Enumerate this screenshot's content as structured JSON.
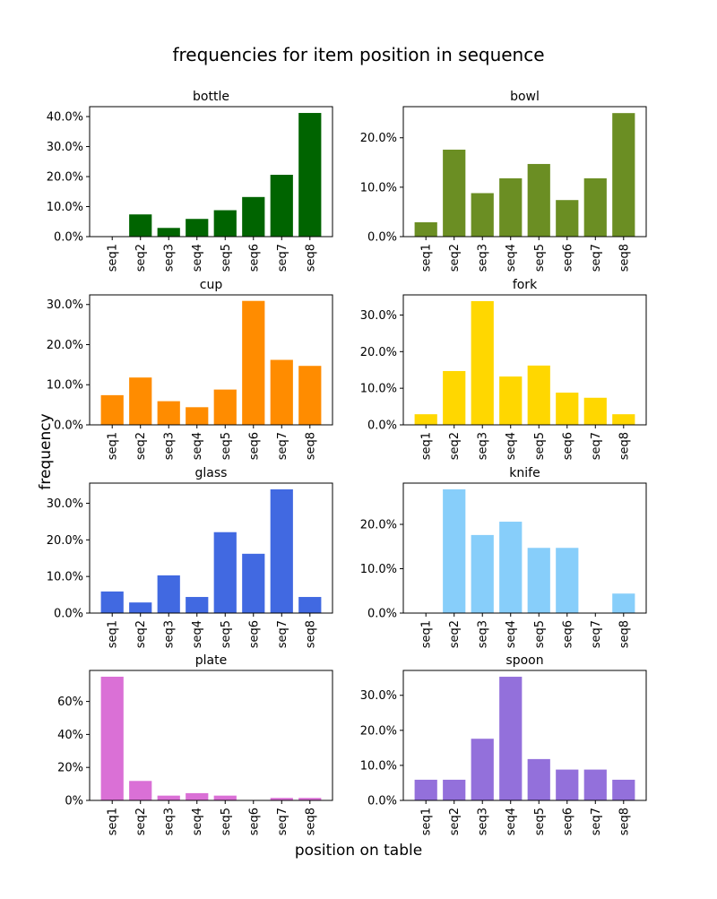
{
  "figure": {
    "title": "frequencies for item position in sequence",
    "xlabel": "position on table",
    "ylabel": "frequency"
  },
  "chart_data": [
    {
      "type": "bar",
      "title": "bottle",
      "color": "#006400",
      "categories": [
        "seq1",
        "seq2",
        "seq3",
        "seq4",
        "seq5",
        "seq6",
        "seq7",
        "seq8"
      ],
      "values": [
        0.0,
        7.4,
        2.9,
        5.9,
        8.8,
        13.2,
        20.6,
        41.2
      ],
      "ylim": [
        0,
        43.3
      ],
      "yticks": [
        0,
        10,
        20,
        30,
        40
      ],
      "tick_format": "0.0%"
    },
    {
      "type": "bar",
      "title": "bowl",
      "color": "#6b8e23",
      "categories": [
        "seq1",
        "seq2",
        "seq3",
        "seq4",
        "seq5",
        "seq6",
        "seq7",
        "seq8"
      ],
      "values": [
        2.9,
        17.6,
        8.8,
        11.8,
        14.7,
        7.4,
        11.8,
        25.0
      ],
      "ylim": [
        0,
        26.3
      ],
      "yticks": [
        0,
        10,
        20
      ],
      "tick_format": "0.0%"
    },
    {
      "type": "bar",
      "title": "cup",
      "color": "#ff8c00",
      "categories": [
        "seq1",
        "seq2",
        "seq3",
        "seq4",
        "seq5",
        "seq6",
        "seq7",
        "seq8"
      ],
      "values": [
        7.4,
        11.8,
        5.9,
        4.4,
        8.8,
        30.9,
        16.2,
        14.7
      ],
      "ylim": [
        0,
        32.4
      ],
      "yticks": [
        0,
        10,
        20,
        30
      ],
      "tick_format": "0.0%"
    },
    {
      "type": "bar",
      "title": "fork",
      "color": "#ffd700",
      "categories": [
        "seq1",
        "seq2",
        "seq3",
        "seq4",
        "seq5",
        "seq6",
        "seq7",
        "seq8"
      ],
      "values": [
        2.9,
        14.7,
        33.8,
        13.2,
        16.2,
        8.8,
        7.4,
        2.9
      ],
      "ylim": [
        0,
        35.5
      ],
      "yticks": [
        0,
        10,
        20,
        30
      ],
      "tick_format": "0.0%"
    },
    {
      "type": "bar",
      "title": "glass",
      "color": "#4169e1",
      "categories": [
        "seq1",
        "seq2",
        "seq3",
        "seq4",
        "seq5",
        "seq6",
        "seq7",
        "seq8"
      ],
      "values": [
        5.9,
        2.9,
        10.3,
        4.4,
        22.1,
        16.2,
        33.8,
        4.4
      ],
      "ylim": [
        0,
        35.5
      ],
      "yticks": [
        0,
        10,
        20,
        30
      ],
      "tick_format": "0.0%"
    },
    {
      "type": "bar",
      "title": "knife",
      "color": "#87cefa",
      "categories": [
        "seq1",
        "seq2",
        "seq3",
        "seq4",
        "seq5",
        "seq6",
        "seq7",
        "seq8"
      ],
      "values": [
        0.0,
        27.9,
        17.6,
        20.6,
        14.7,
        14.7,
        0.0,
        4.4
      ],
      "ylim": [
        0,
        29.3
      ],
      "yticks": [
        0,
        10,
        20
      ],
      "tick_format": "0.0%"
    },
    {
      "type": "bar",
      "title": "plate",
      "color": "#da70d6",
      "categories": [
        "seq1",
        "seq2",
        "seq3",
        "seq4",
        "seq5",
        "seq6",
        "seq7",
        "seq8"
      ],
      "values": [
        75.0,
        11.8,
        2.9,
        4.4,
        2.9,
        0.0,
        1.5,
        1.5
      ],
      "ylim": [
        0,
        78.8
      ],
      "yticks": [
        0,
        20,
        40,
        60
      ],
      "tick_format": "0%"
    },
    {
      "type": "bar",
      "title": "spoon",
      "color": "#9370db",
      "categories": [
        "seq1",
        "seq2",
        "seq3",
        "seq4",
        "seq5",
        "seq6",
        "seq7",
        "seq8"
      ],
      "values": [
        5.9,
        5.9,
        17.6,
        35.3,
        11.8,
        8.8,
        8.8,
        5.9
      ],
      "ylim": [
        0,
        37.1
      ],
      "yticks": [
        0,
        10,
        20,
        30
      ],
      "tick_format": "0.0%"
    }
  ]
}
